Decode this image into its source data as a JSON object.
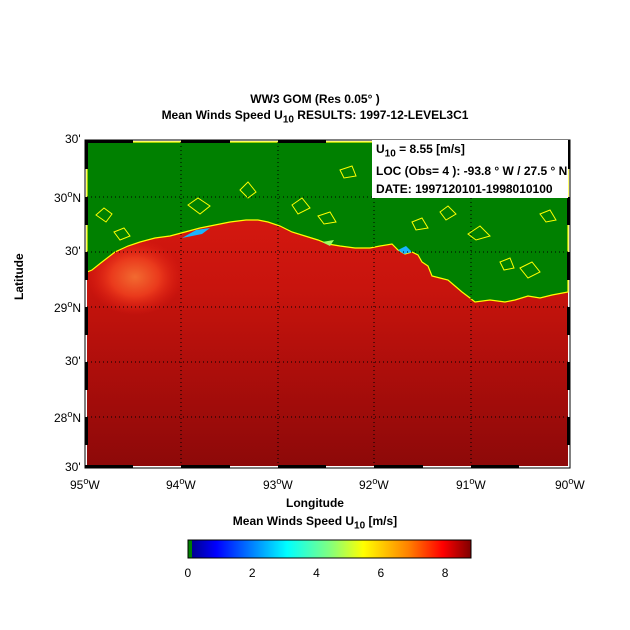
{
  "title": {
    "line1": "WW3 GOM  (Res 0.05° )",
    "line2_prefix": "Mean Winds   Speed U",
    "line2_sub": "10",
    "line2_suffix": "  RESULTS:  1997-12-LEVEL3C1"
  },
  "info": {
    "u_label": "U",
    "u_sub": "10",
    "u_value": "  =  8.55 [m/s]",
    "loc": "LOC (Obs= 4 ):  -93.8 ° W / 27.5 ° N",
    "date": "DATE: 1997120101-1998010100"
  },
  "axes": {
    "xlabel": "Longitude",
    "ylabel": "Latitude",
    "x_ticks": [
      {
        "deg": "95",
        "unit": "W"
      },
      {
        "deg": "94",
        "unit": "W"
      },
      {
        "deg": "93",
        "unit": "W"
      },
      {
        "deg": "92",
        "unit": "W"
      },
      {
        "deg": "91",
        "unit": "W"
      },
      {
        "deg": "90",
        "unit": "W"
      }
    ],
    "y_ticks": [
      {
        "text": "30'"
      },
      {
        "deg": "30",
        "unit": "N"
      },
      {
        "text": "30'"
      },
      {
        "deg": "29",
        "unit": "N"
      },
      {
        "text": "30'"
      },
      {
        "deg": "28",
        "unit": "N"
      },
      {
        "text": "30'"
      }
    ]
  },
  "colorbar": {
    "label_prefix": "Mean Winds   Speed U",
    "label_sub": "10",
    "label_suffix": "   [m/s]",
    "ticks": [
      "0",
      "2",
      "4",
      "6",
      "8"
    ],
    "range": [
      0,
      8.8
    ]
  },
  "colors": {
    "land": "#008000",
    "coast": "#ffff00",
    "sea_high": "#dd1a0f",
    "sea_low": "#8e0a0a",
    "hotspot": "#f25a2a"
  }
}
